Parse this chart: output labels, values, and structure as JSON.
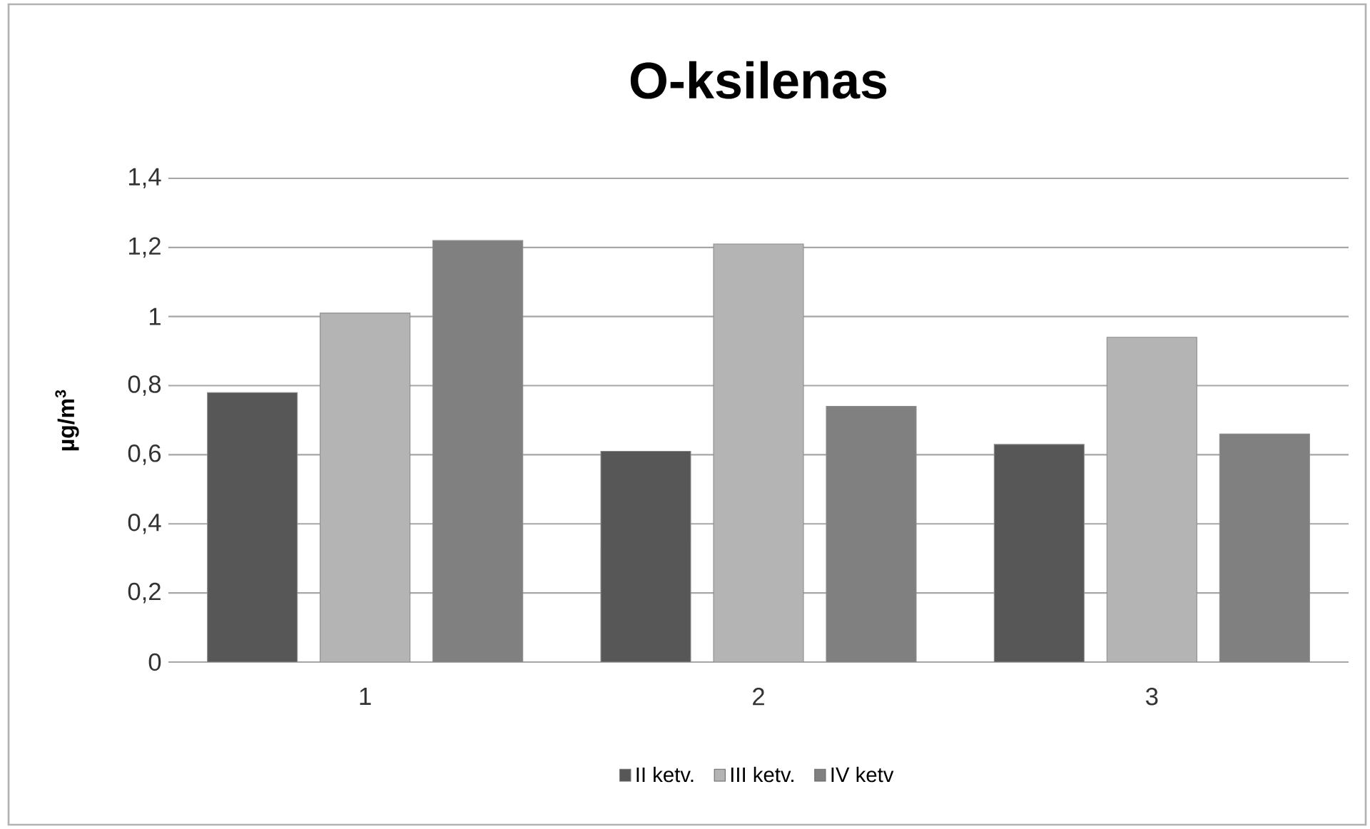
{
  "chart_data": {
    "type": "bar",
    "title": "O-ksilenas",
    "ylabel": "µg/m$^{3}$",
    "categories": [
      "1",
      "2",
      "3"
    ],
    "series": [
      {
        "name": "II ketv.",
        "color": "#575757",
        "values": [
          0.78,
          0.61,
          0.63
        ]
      },
      {
        "name": "III ketv.",
        "color": "#b4b4b4",
        "values": [
          1.01,
          1.21,
          0.94
        ]
      },
      {
        "name": "IV ketv",
        "color": "#808080",
        "values": [
          1.22,
          0.74,
          0.66
        ]
      }
    ],
    "ylim": [
      0,
      1.4
    ],
    "yticks": [
      0,
      {
        "value": 0.2,
        "label": "0,2"
      },
      {
        "value": 0.4,
        "label": "0,4"
      },
      {
        "value": 0.6,
        "label": "0,6"
      },
      {
        "value": 0.8,
        "label": "0,8"
      },
      1,
      {
        "value": 1.2,
        "label": "1,2"
      },
      {
        "value": 1.4,
        "label": "1,4"
      }
    ],
    "grid": "y",
    "legend": "bottom"
  }
}
